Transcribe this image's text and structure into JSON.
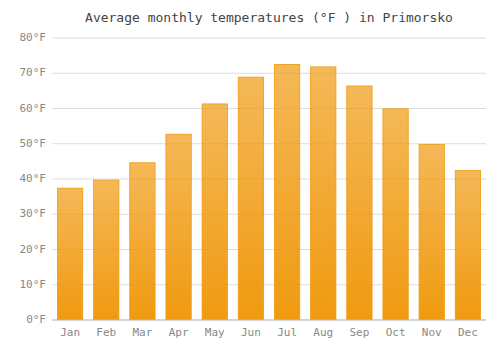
{
  "chart_data": {
    "type": "bar",
    "title": "Average monthly temperatures (°F ) in Primorsko",
    "categories": [
      "Jan",
      "Feb",
      "Mar",
      "Apr",
      "May",
      "Jun",
      "Jul",
      "Aug",
      "Sep",
      "Oct",
      "Nov",
      "Dec"
    ],
    "values": [
      37.4,
      39.7,
      44.6,
      52.7,
      61.3,
      68.9,
      72.5,
      71.8,
      66.4,
      59.9,
      49.8,
      42.4
    ],
    "color": "#F09A10",
    "ylim": [
      0,
      80
    ],
    "yticks": [
      {
        "value": 0,
        "label": "0°F"
      },
      {
        "value": 10,
        "label": "10°F"
      },
      {
        "value": 20,
        "label": "20°F"
      },
      {
        "value": 30,
        "label": "30°F"
      },
      {
        "value": 40,
        "label": "40°F"
      },
      {
        "value": 50,
        "label": "50°F"
      },
      {
        "value": 60,
        "label": "60°F"
      },
      {
        "value": 70,
        "label": "70°F"
      },
      {
        "value": 80,
        "label": "80°F"
      }
    ],
    "grid": true
  }
}
